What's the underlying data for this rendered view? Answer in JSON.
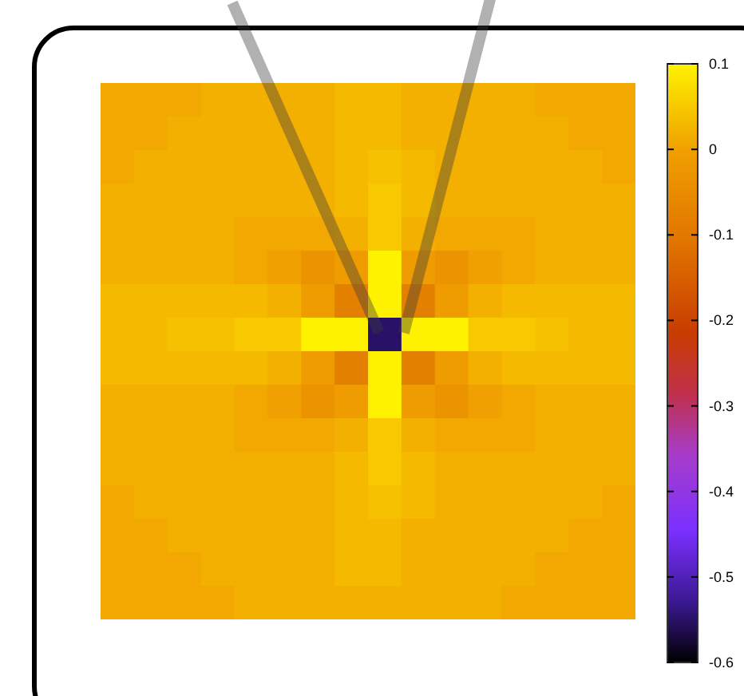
{
  "chart_data": {
    "type": "heatmap",
    "categories": [
      null,
      null,
      null,
      null,
      null,
      null,
      null,
      null,
      null,
      null,
      null,
      null,
      null,
      null,
      null,
      null
    ],
    "y_categories": [
      null,
      null,
      null,
      null,
      null,
      null,
      null,
      null,
      null,
      null,
      null,
      null,
      null,
      null,
      null,
      null
    ],
    "cells": [
      [
        0.01,
        0.01,
        0.01,
        0.02,
        0.02,
        0.02,
        0.02,
        0.03,
        0.03,
        0.02,
        0.02,
        0.02,
        0.02,
        0.01,
        0.01,
        0.01
      ],
      [
        0.01,
        0.01,
        0.02,
        0.02,
        0.02,
        0.02,
        0.02,
        0.03,
        0.03,
        0.02,
        0.02,
        0.02,
        0.02,
        0.02,
        0.01,
        0.01
      ],
      [
        0.01,
        0.02,
        0.02,
        0.02,
        0.02,
        0.02,
        0.02,
        0.03,
        0.04,
        0.03,
        0.02,
        0.02,
        0.02,
        0.02,
        0.02,
        0.01
      ],
      [
        0.02,
        0.02,
        0.02,
        0.02,
        0.02,
        0.02,
        0.02,
        0.03,
        0.05,
        0.03,
        0.02,
        0.02,
        0.02,
        0.02,
        0.02,
        0.02
      ],
      [
        0.02,
        0.02,
        0.02,
        0.02,
        0.01,
        0.01,
        0.01,
        0.02,
        0.05,
        0.02,
        0.01,
        0.01,
        0.01,
        0.02,
        0.02,
        0.02
      ],
      [
        0.02,
        0.02,
        0.02,
        0.02,
        0.01,
        0.0,
        -0.03,
        -0.01,
        0.1,
        -0.01,
        -0.03,
        0.0,
        0.01,
        0.02,
        0.02,
        0.02
      ],
      [
        0.03,
        0.03,
        0.03,
        0.03,
        0.03,
        0.02,
        -0.01,
        -0.08,
        0.1,
        -0.08,
        -0.01,
        0.02,
        0.03,
        0.03,
        0.03,
        0.03
      ],
      [
        0.03,
        0.03,
        0.04,
        0.04,
        0.05,
        0.05,
        0.1,
        0.1,
        -0.55,
        0.1,
        0.1,
        0.05,
        0.05,
        0.04,
        0.03,
        0.03
      ],
      [
        0.03,
        0.03,
        0.03,
        0.03,
        0.03,
        0.02,
        -0.01,
        -0.08,
        0.1,
        -0.08,
        -0.01,
        0.02,
        0.03,
        0.03,
        0.03,
        0.03
      ],
      [
        0.02,
        0.02,
        0.02,
        0.02,
        0.01,
        0.0,
        -0.03,
        -0.01,
        0.1,
        -0.01,
        -0.03,
        0.0,
        0.01,
        0.02,
        0.02,
        0.02
      ],
      [
        0.02,
        0.02,
        0.02,
        0.02,
        0.01,
        0.01,
        0.01,
        0.02,
        0.05,
        0.02,
        0.01,
        0.01,
        0.01,
        0.02,
        0.02,
        0.02
      ],
      [
        0.02,
        0.02,
        0.02,
        0.02,
        0.02,
        0.02,
        0.02,
        0.03,
        0.05,
        0.03,
        0.02,
        0.02,
        0.02,
        0.02,
        0.02,
        0.02
      ],
      [
        0.01,
        0.02,
        0.02,
        0.02,
        0.02,
        0.02,
        0.02,
        0.03,
        0.04,
        0.03,
        0.02,
        0.02,
        0.02,
        0.02,
        0.02,
        0.01
      ],
      [
        0.01,
        0.01,
        0.02,
        0.02,
        0.02,
        0.02,
        0.02,
        0.03,
        0.03,
        0.02,
        0.02,
        0.02,
        0.02,
        0.02,
        0.01,
        0.01
      ],
      [
        0.01,
        0.01,
        0.01,
        0.02,
        0.02,
        0.02,
        0.02,
        0.03,
        0.03,
        0.02,
        0.02,
        0.02,
        0.02,
        0.01,
        0.01,
        0.01
      ],
      [
        0.01,
        0.01,
        0.01,
        0.01,
        0.02,
        0.02,
        0.02,
        0.02,
        0.02,
        0.02,
        0.02,
        0.02,
        0.01,
        0.01,
        0.01,
        0.01
      ]
    ],
    "clim": [
      -0.6,
      0.1
    ],
    "cticks": [
      0.1,
      0,
      -0.1,
      -0.2,
      -0.3,
      -0.4,
      -0.5,
      -0.6
    ],
    "tick_labels": false
  }
}
